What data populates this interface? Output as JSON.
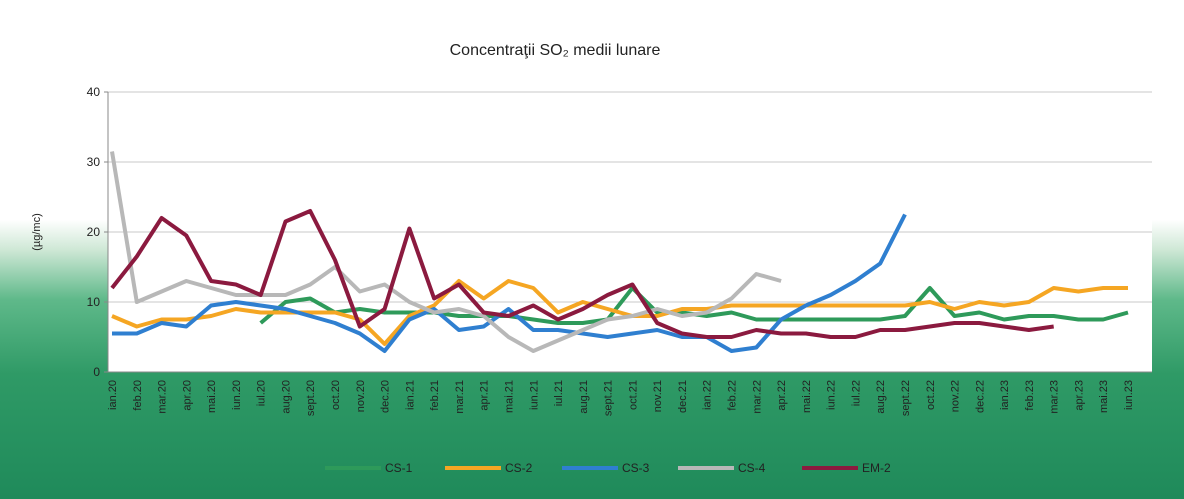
{
  "chart_data": {
    "type": "line",
    "title": "Concentraţii SO₂ medii lunare",
    "y_label": "(µg/mc)",
    "categories": [
      "ian.20",
      "feb.20",
      "mar.20",
      "apr.20",
      "mai.20",
      "iun.20",
      "iul.20",
      "aug.20",
      "sept.20",
      "oct.20",
      "nov.20",
      "dec.20",
      "ian.21",
      "feb.21",
      "mar.21",
      "apr.21",
      "mai.21",
      "iun.21",
      "iul.21",
      "aug.21",
      "sept.21",
      "oct.21",
      "nov.21",
      "dec.21",
      "ian.22",
      "feb.22",
      "mar.22",
      "apr.22",
      "mai.22",
      "iun.22",
      "iul.22",
      "aug.22",
      "sept.22",
      "oct.22",
      "nov.22",
      "dec.22",
      "ian.23",
      "feb.23",
      "mar.23",
      "apr.23",
      "mai.23",
      "iun.23"
    ],
    "series": [
      {
        "name": "CS-1",
        "color": "#2e9a5a",
        "values": [
          null,
          null,
          null,
          null,
          null,
          null,
          7,
          10,
          10.5,
          8.5,
          9,
          8.5,
          8.5,
          8.5,
          8,
          8,
          8,
          7.5,
          7,
          7,
          7.5,
          12,
          8.5,
          8.5,
          8,
          8.5,
          7.5,
          7.5,
          7.5,
          7.5,
          7.5,
          7.5,
          8,
          12,
          8,
          8.5,
          7.5,
          8,
          8,
          7.5,
          7.5,
          8.5
        ]
      },
      {
        "name": "CS-2",
        "color": "#f5a623",
        "values": [
          8,
          6.5,
          7.5,
          7.5,
          8,
          9,
          8.5,
          8.5,
          8.5,
          8.5,
          7.5,
          4,
          8,
          9.5,
          13,
          10.5,
          13,
          12,
          8.5,
          10,
          9,
          8,
          8,
          9,
          9,
          9.5,
          9.5,
          9.5,
          9.5,
          9.5,
          9.5,
          9.5,
          9.5,
          10,
          9,
          10,
          9.5,
          10,
          12,
          11.5,
          12,
          12
        ]
      },
      {
        "name": "CS-3",
        "color": "#2f7fd0",
        "values": [
          5.5,
          5.5,
          7,
          6.5,
          9.5,
          10,
          9.5,
          9,
          8,
          7,
          5.5,
          3,
          7.5,
          9,
          6,
          6.5,
          9,
          6,
          6,
          5.5,
          5,
          5.5,
          6,
          5,
          5,
          3,
          3.5,
          7.5,
          9.5,
          11,
          13,
          15.5,
          22.5,
          null,
          null,
          null,
          null,
          null,
          null,
          null,
          null,
          null
        ]
      },
      {
        "name": "CS-4",
        "color": "#b8b8b8",
        "values": [
          31.5,
          10,
          11.5,
          13,
          12,
          11,
          11,
          11,
          12.5,
          15,
          11.5,
          12.5,
          10,
          8.5,
          9,
          8,
          5,
          3,
          4.5,
          6,
          7.5,
          8,
          9,
          8,
          8.5,
          10.5,
          14,
          13,
          null,
          null,
          null,
          null,
          null,
          null,
          null,
          null,
          null,
          null,
          null,
          null,
          null,
          null
        ]
      },
      {
        "name": "EM-2",
        "color": "#8b1a3f",
        "values": [
          12,
          16.5,
          22,
          19.5,
          13,
          12.5,
          11,
          21.5,
          23,
          16,
          6.5,
          9,
          20.5,
          10.5,
          12.5,
          8.5,
          8,
          9.5,
          7.5,
          9,
          11,
          12.5,
          7,
          5.5,
          5,
          5,
          6,
          5.5,
          5.5,
          5,
          5,
          6,
          6,
          6.5,
          7,
          7,
          6.5,
          6,
          6.5,
          null,
          null,
          null
        ]
      }
    ],
    "ylim": [
      0,
      40
    ],
    "yticks": [
      0,
      10,
      20,
      30,
      40
    ],
    "grid": true,
    "legend": "bottom"
  }
}
